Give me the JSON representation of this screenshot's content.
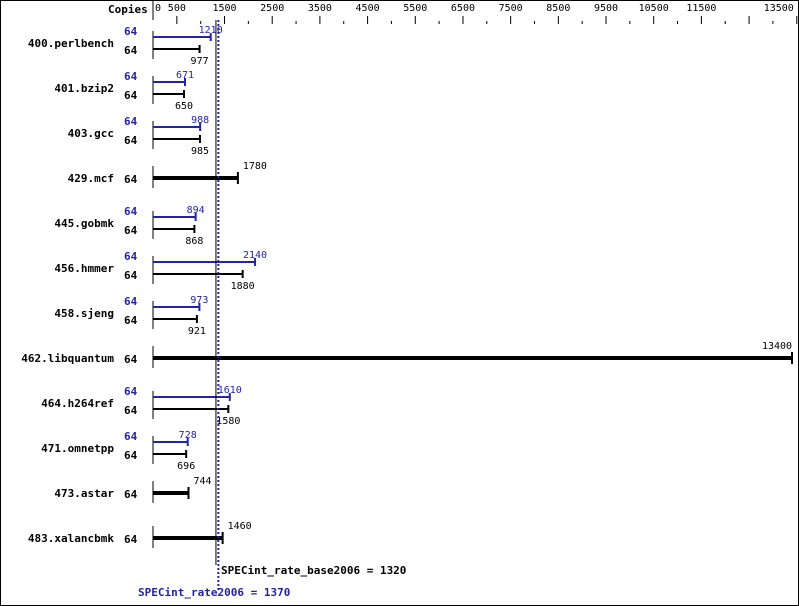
{
  "chart_data": {
    "type": "bar",
    "orientation": "horizontal",
    "xlabel": "Copies",
    "xlim": [
      0,
      13500
    ],
    "tick_labels": [
      "0",
      "500",
      "1500",
      "2500",
      "3500",
      "4500",
      "5500",
      "6500",
      "7500",
      "8500",
      "9500",
      "10500",
      "11500",
      "13500"
    ],
    "colors": {
      "peak": "#2323a8",
      "base": "#000000"
    },
    "benchmarks": [
      {
        "name": "400.perlbench",
        "copies_peak": "64",
        "peak": 1210,
        "copies_base": "64",
        "base": 977
      },
      {
        "name": "401.bzip2",
        "copies_peak": "64",
        "peak": 671,
        "copies_base": "64",
        "base": 650
      },
      {
        "name": "403.gcc",
        "copies_peak": "64",
        "peak": 988,
        "copies_base": "64",
        "base": 985
      },
      {
        "name": "429.mcf",
        "copies_base": "64",
        "base": 1780
      },
      {
        "name": "445.gobmk",
        "copies_peak": "64",
        "peak": 894,
        "copies_base": "64",
        "base": 868
      },
      {
        "name": "456.hmmer",
        "copies_peak": "64",
        "peak": 2140,
        "copies_base": "64",
        "base": 1880
      },
      {
        "name": "458.sjeng",
        "copies_peak": "64",
        "peak": 973,
        "copies_base": "64",
        "base": 921
      },
      {
        "name": "462.libquantum",
        "copies_base": "64",
        "base": 13400
      },
      {
        "name": "464.h264ref",
        "copies_peak": "64",
        "peak": 1610,
        "copies_base": "64",
        "base": 1580
      },
      {
        "name": "471.omnetpp",
        "copies_peak": "64",
        "peak": 728,
        "copies_base": "64",
        "base": 696
      },
      {
        "name": "473.astar",
        "copies_base": "64",
        "base": 744
      },
      {
        "name": "483.xalancbmk",
        "copies_base": "64",
        "base": 1460
      }
    ],
    "summary": {
      "base_label": "SPECint_rate_base2006 = 1320",
      "base_value": 1320,
      "peak_label": "SPECint_rate2006 = 1370",
      "peak_value": 1370
    }
  }
}
